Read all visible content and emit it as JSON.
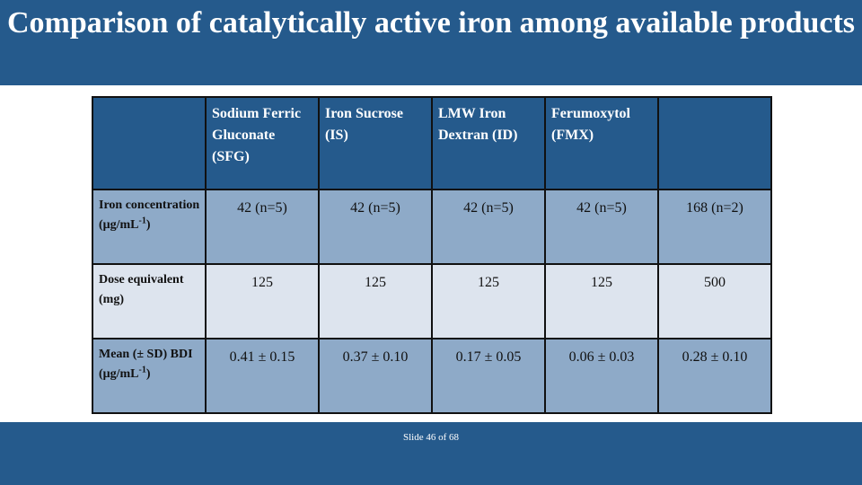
{
  "slide": {
    "title": "Comparison of catalytically active iron among available products",
    "slide_number": "Slide 46 of 68"
  },
  "table": {
    "headers": [
      "",
      "Sodium Ferric Gluconate (SFG)",
      "Iron Sucrose (IS)",
      "LMW Iron Dextran (ID)",
      "Ferumoxytol (FMX)",
      ""
    ],
    "rows": [
      {
        "label": "Iron concentration (μg/mL",
        "label_sup": "-1",
        "label_suffix": ")",
        "values": [
          "42 (n=5)",
          "42 (n=5)",
          "42 (n=5)",
          "42 (n=5)",
          "168 (n=2)"
        ]
      },
      {
        "label": "Dose equivalent (mg)",
        "label_sup": "",
        "label_suffix": "",
        "values": [
          "125",
          "125",
          "125",
          "125",
          "500"
        ]
      },
      {
        "label": "Mean (± SD) BDI (μg/mL",
        "label_sup": "-1",
        "label_suffix": ")",
        "values": [
          "0.41 ± 0.15",
          "0.37 ± 0.10",
          "0.17 ± 0.05",
          "0.06 ± 0.03",
          "0.28 ± 0.10"
        ]
      }
    ]
  },
  "colors": {
    "header_band": "#255a8c",
    "row_dark": "#8eaac8",
    "row_light": "#dde4ee"
  }
}
